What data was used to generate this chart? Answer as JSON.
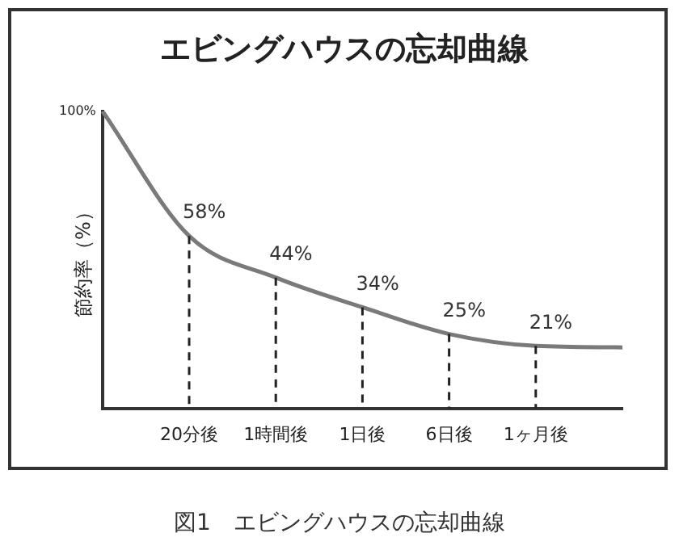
{
  "chart_data": {
    "type": "line",
    "title": "エビングハウスの忘却曲線",
    "ylabel": "節約率（%）",
    "categories": [
      null,
      "20分後",
      "1時間後",
      "1日後",
      "6日後",
      "1ヶ月後",
      null
    ],
    "series": [
      {
        "color": "#7a7a7a",
        "values": [
          100,
          58,
          44,
          34,
          25,
          21,
          20.5
        ],
        "value_labels": [
          null,
          "58%",
          "44%",
          "34%",
          "25%",
          "21%",
          null
        ]
      }
    ],
    "ylim": [
      0,
      100
    ],
    "grid": false,
    "legend": false,
    "marker": "none",
    "line_style": "solid",
    "annotations": [
      "100%",
      "図1　エビングハウスの忘却曲線"
    ]
  }
}
